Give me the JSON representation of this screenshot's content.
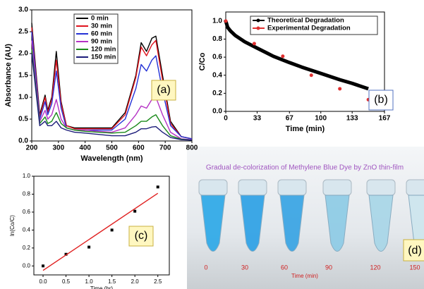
{
  "chart_data": [
    {
      "type": "line",
      "x_label": "Wavelength (nm)",
      "y_label": "Absorbance (AU)",
      "panel_label": "(a)",
      "xlim": [
        200,
        800
      ],
      "xticks": [
        200,
        300,
        400,
        500,
        600,
        700,
        800
      ],
      "ylim": [
        0,
        3
      ],
      "yticks": [
        {
          "value": 0,
          "label": "0.0"
        },
        0.5,
        {
          "value": 1,
          "label": "1.0"
        },
        1.5,
        {
          "value": 2,
          "label": "2.0"
        },
        2.5,
        {
          "value": 3,
          "label": "3.0"
        }
      ],
      "legend": "upper left",
      "x": [
        200,
        230,
        250,
        260,
        275,
        292,
        310,
        330,
        360,
        400,
        450,
        500,
        550,
        590,
        610,
        630,
        650,
        665,
        690,
        720,
        760,
        800
      ],
      "series": [
        {
          "name": "0 min",
          "color": "#000000",
          "values": [
            2.7,
            0.6,
            1.05,
            0.7,
            1.0,
            2.05,
            0.9,
            0.35,
            0.3,
            0.3,
            0.3,
            0.3,
            0.65,
            1.5,
            2.25,
            2.05,
            2.35,
            2.4,
            1.5,
            0.45,
            0.1,
            0.05
          ]
        },
        {
          "name": "30 min",
          "color": "#e0141e",
          "values": [
            2.6,
            0.55,
            1.0,
            0.65,
            0.95,
            1.85,
            0.85,
            0.35,
            0.28,
            0.28,
            0.28,
            0.28,
            0.6,
            1.45,
            2.15,
            1.95,
            2.2,
            2.3,
            1.4,
            0.4,
            0.1,
            0.05
          ]
        },
        {
          "name": "60 min",
          "color": "#2431d6",
          "values": [
            2.5,
            0.5,
            0.9,
            0.6,
            0.85,
            1.6,
            0.75,
            0.3,
            0.25,
            0.25,
            0.25,
            0.25,
            0.5,
            1.2,
            1.75,
            1.6,
            1.85,
            1.95,
            1.15,
            0.35,
            0.1,
            0.05
          ]
        },
        {
          "name": "90 min",
          "color": "#b532c4",
          "values": [
            2.3,
            0.45,
            0.7,
            0.5,
            0.6,
            0.95,
            0.5,
            0.3,
            0.25,
            0.25,
            0.22,
            0.2,
            0.3,
            0.6,
            0.8,
            0.75,
            0.95,
            1.0,
            0.6,
            0.2,
            0.05,
            0.03
          ]
        },
        {
          "name": "120 min",
          "color": "#1a8a1a",
          "values": [
            2.1,
            0.4,
            0.55,
            0.4,
            0.45,
            0.65,
            0.4,
            0.3,
            0.25,
            0.22,
            0.2,
            0.18,
            0.2,
            0.35,
            0.45,
            0.45,
            0.55,
            0.6,
            0.35,
            0.12,
            0.04,
            0.02
          ]
        },
        {
          "name": "150 min",
          "color": "#1c1c7a",
          "values": [
            2.0,
            0.35,
            0.45,
            0.35,
            0.35,
            0.45,
            0.3,
            0.25,
            0.2,
            0.18,
            0.15,
            0.12,
            0.12,
            0.2,
            0.28,
            0.28,
            0.32,
            0.33,
            0.2,
            0.08,
            0.03,
            0.02
          ]
        }
      ]
    },
    {
      "type": "line",
      "x_label": "Time (min)",
      "y_label": "C/Co",
      "panel_label": "(b)",
      "xlim": [
        0,
        167
      ],
      "xticks": [
        0,
        33,
        67,
        100,
        133,
        167
      ],
      "ylim": [
        0,
        1.1
      ],
      "yticks": [
        {
          "value": 0,
          "label": "0.0"
        },
        0.2,
        0.4,
        0.6,
        0.8,
        {
          "value": 1,
          "label": "1.0"
        }
      ],
      "legend": "upper right",
      "series": [
        {
          "name": "Theoretical Degradation",
          "color": "#000000",
          "mode": "line",
          "x": [
            0,
            2,
            5,
            10,
            20,
            33,
            50,
            67,
            80,
            100,
            120,
            133,
            150
          ],
          "values": [
            1.0,
            0.93,
            0.89,
            0.84,
            0.77,
            0.7,
            0.61,
            0.54,
            0.49,
            0.42,
            0.35,
            0.31,
            0.25
          ]
        },
        {
          "name": "Experimental Degradation",
          "color": "#e03030",
          "mode": "markers",
          "x": [
            0,
            30,
            60,
            90,
            120,
            150
          ],
          "values": [
            1.0,
            0.75,
            0.61,
            0.4,
            0.25,
            0.13
          ]
        }
      ]
    },
    {
      "type": "scatter",
      "x_label": "Time (hr)",
      "y_label": "ln(Co/C)",
      "panel_label": "(c)",
      "xlim": [
        -0.2,
        2.75
      ],
      "xticks": [
        {
          "value": 0,
          "label": "0.0"
        },
        0.5,
        {
          "value": 1,
          "label": "1.0"
        },
        1.5,
        {
          "value": 2,
          "label": "2.0"
        },
        2.5
      ],
      "ylim": [
        -0.1,
        1.0
      ],
      "yticks": [
        {
          "value": 0,
          "label": "0.0"
        },
        0.2,
        0.4,
        0.6,
        0.8,
        {
          "value": 1,
          "label": "1.0"
        }
      ],
      "series": [
        {
          "color": "#000000",
          "mode": "markers",
          "x": [
            0,
            0.5,
            1,
            1.5,
            2,
            2.5
          ],
          "values": [
            0,
            0.13,
            0.21,
            0.4,
            0.61,
            0.88
          ]
        },
        {
          "color": "#e02020",
          "mode": "line",
          "x": [
            0,
            2.5
          ],
          "values": [
            -0.05,
            0.81
          ]
        }
      ]
    }
  ],
  "photo": {
    "title": "Gradual de-colorization of Methylene Blue Dye by ZnO thin-film",
    "labels": [
      "0",
      "30",
      "60",
      "90",
      "120",
      "150"
    ],
    "x_label": "Time (min)",
    "panel_label": "(d)"
  }
}
